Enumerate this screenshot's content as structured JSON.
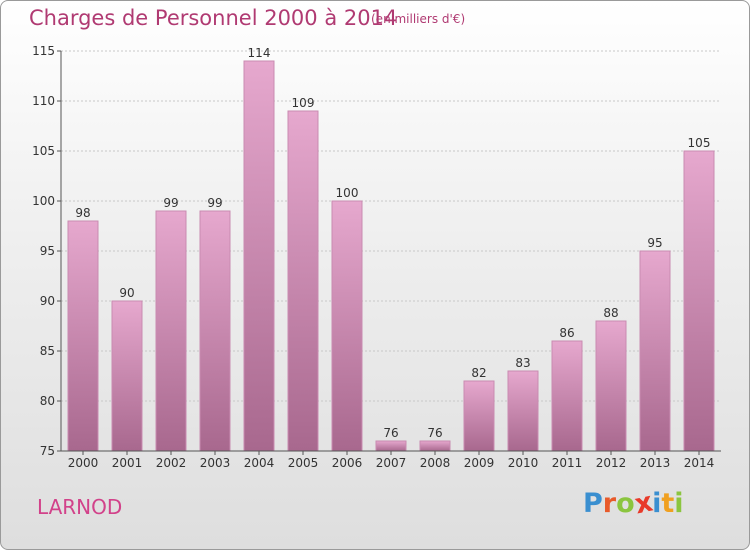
{
  "header": {
    "title": "Charges de Personnel 2000 à 2014",
    "subtitle": "(en milliers d'€)"
  },
  "footer": {
    "commune": "LARNOD",
    "logo_text": "Proxiti"
  },
  "colors": {
    "bar_top": "#e6a8ce",
    "bar_bottom": "#a8688e",
    "title": "#b03a72",
    "commune": "#d2428a",
    "logo_letters": [
      "#3a8fd0",
      "#e85a2a",
      "#8bc53f",
      "#e83a2a",
      "#3a8fd0",
      "#f0a020",
      "#8bc53f"
    ]
  },
  "chart_data": {
    "type": "bar",
    "title": "Charges de Personnel 2000 à 2014",
    "ylabel": "(en milliers d'€)",
    "xlabel": "",
    "ylim": [
      75,
      115
    ],
    "yticks": [
      75,
      80,
      85,
      90,
      95,
      100,
      105,
      110,
      115
    ],
    "grid": true,
    "categories": [
      "2000",
      "2001",
      "2002",
      "2003",
      "2004",
      "2005",
      "2006",
      "2007",
      "2008",
      "2009",
      "2010",
      "2011",
      "2012",
      "2013",
      "2014"
    ],
    "values": [
      98,
      90,
      99,
      99,
      114,
      109,
      100,
      76,
      76,
      82,
      83,
      86,
      88,
      95,
      105
    ]
  }
}
